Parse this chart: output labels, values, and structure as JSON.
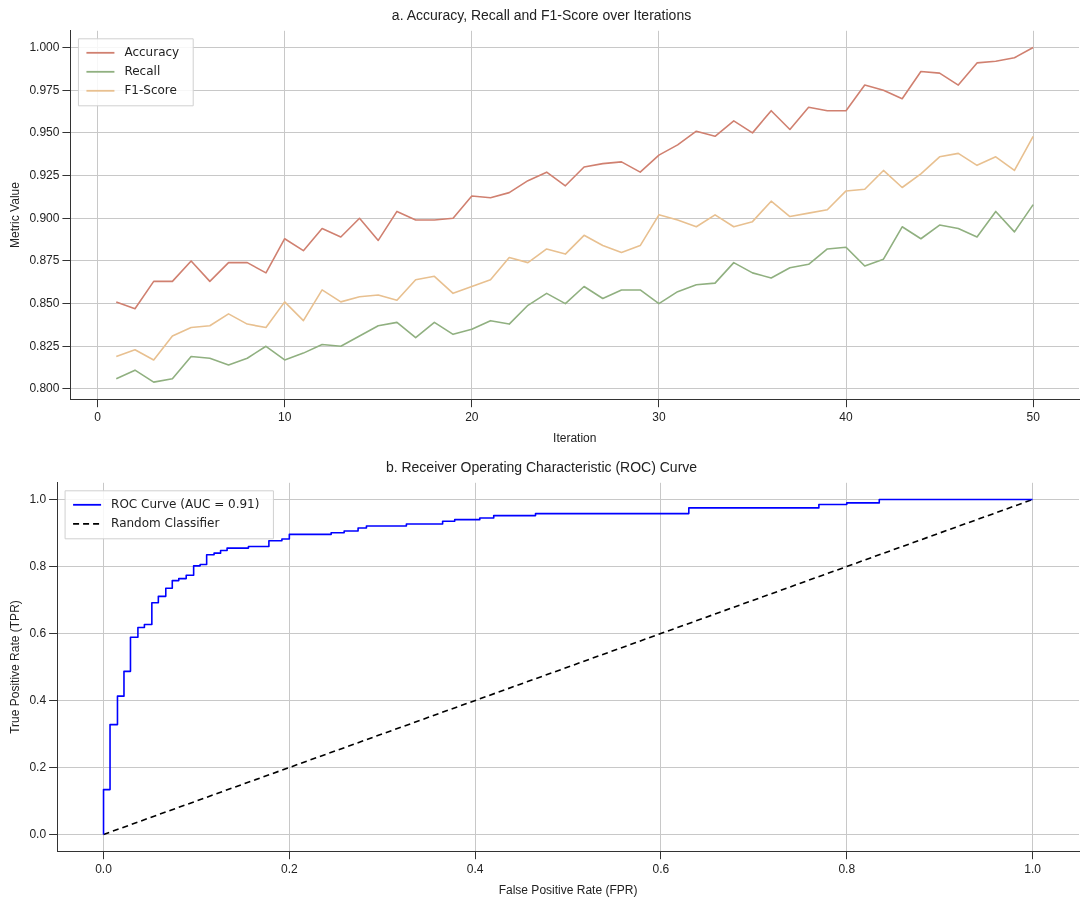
{
  "chart_data": [
    {
      "type": "line",
      "title": "a. Accuracy, Recall and F1-Score over Iterations",
      "xlabel": "Iteration",
      "ylabel": "Metric Value",
      "x": [
        1,
        2,
        3,
        4,
        5,
        6,
        7,
        8,
        9,
        10,
        11,
        12,
        13,
        14,
        15,
        16,
        17,
        18,
        19,
        20,
        21,
        22,
        23,
        24,
        25,
        26,
        27,
        28,
        29,
        30,
        31,
        32,
        33,
        34,
        35,
        36,
        37,
        38,
        39,
        40,
        41,
        42,
        43,
        44,
        45,
        46,
        47,
        48,
        49,
        50
      ],
      "series": [
        {
          "name": "Accuracy",
          "color": "#d08070",
          "values": [
            0.851,
            0.847,
            0.863,
            0.863,
            0.875,
            0.863,
            0.874,
            0.874,
            0.868,
            0.888,
            0.881,
            0.894,
            0.889,
            0.9,
            0.887,
            0.904,
            0.899,
            0.899,
            0.9,
            0.913,
            0.912,
            0.915,
            0.922,
            0.927,
            0.919,
            0.93,
            0.932,
            0.933,
            0.927,
            0.937,
            0.943,
            0.951,
            0.948,
            0.957,
            0.95,
            0.963,
            0.952,
            0.965,
            0.963,
            0.963,
            0.978,
            0.975,
            0.97,
            0.986,
            0.985,
            0.978,
            0.991,
            0.992,
            0.994,
            1.0
          ]
        },
        {
          "name": "Recall",
          "color": "#90b080",
          "values": [
            0.806,
            0.811,
            0.804,
            0.806,
            0.819,
            0.818,
            0.814,
            0.818,
            0.825,
            0.817,
            0.821,
            0.826,
            0.825,
            0.831,
            0.837,
            0.839,
            0.83,
            0.839,
            0.832,
            0.835,
            0.84,
            0.838,
            0.849,
            0.856,
            0.85,
            0.86,
            0.853,
            0.858,
            0.858,
            0.85,
            0.857,
            0.861,
            0.862,
            0.874,
            0.868,
            0.865,
            0.871,
            0.873,
            0.882,
            0.883,
            0.872,
            0.876,
            0.895,
            0.888,
            0.896,
            0.894,
            0.889,
            0.904,
            0.892,
            0.908
          ]
        },
        {
          "name": "F1-Score",
          "color": "#e8c090",
          "values": [
            0.819,
            0.823,
            0.817,
            0.831,
            0.836,
            0.837,
            0.844,
            0.838,
            0.836,
            0.851,
            0.84,
            0.858,
            0.851,
            0.854,
            0.855,
            0.852,
            0.864,
            0.866,
            0.856,
            0.86,
            0.864,
            0.877,
            0.874,
            0.882,
            0.879,
            0.89,
            0.884,
            0.88,
            0.884,
            0.902,
            0.899,
            0.895,
            0.902,
            0.895,
            0.898,
            0.91,
            0.901,
            0.903,
            0.905,
            0.916,
            0.917,
            0.928,
            0.918,
            0.926,
            0.936,
            0.938,
            0.931,
            0.936,
            0.928,
            0.948
          ]
        }
      ],
      "xlim": [
        -1.45,
        52.45
      ],
      "xticks": [
        0,
        10,
        20,
        30,
        40,
        50
      ],
      "ylim": [
        0.794,
        1.0098
      ],
      "yticks": [
        {
          "value": 0.8,
          "label": "0.800"
        },
        {
          "value": 0.825,
          "label": "0.825"
        },
        {
          "value": 0.85,
          "label": "0.850"
        },
        {
          "value": 0.875,
          "label": "0.875"
        },
        {
          "value": 0.9,
          "label": "0.900"
        },
        {
          "value": 0.925,
          "label": "0.925"
        },
        {
          "value": 0.95,
          "label": "0.950"
        },
        {
          "value": 0.975,
          "label": "0.975"
        },
        {
          "value": 1.0,
          "label": "1.000"
        }
      ],
      "grid": true,
      "legend": "top left",
      "marker": "none",
      "line_style": "solid"
    },
    {
      "type": "step",
      "title": "b. Receiver Operating Characteristic (ROC) Curve",
      "xlabel": "False Positive Rate (FPR)",
      "ylabel": "True Positive Rate (TPR)",
      "series": [
        {
          "name": "ROC Curve (AUC = 0.91)",
          "color": "#0000ff",
          "x": [
            0,
            0,
            0.007,
            0.015,
            0.022,
            0.029,
            0.037,
            0.044,
            0.052,
            0.059,
            0.067,
            0.074,
            0.081,
            0.089,
            0.097,
            0.104,
            0.111,
            0.119,
            0.126,
            0.133,
            0.156,
            0.178,
            0.192,
            0.2,
            0.245,
            0.259,
            0.274,
            0.283,
            0.326,
            0.365,
            0.378,
            0.405,
            0.42,
            0.465,
            0.63,
            0.77,
            0.8,
            0.835,
            1.0
          ],
          "values": [
            0,
            0.134,
            0.328,
            0.413,
            0.487,
            0.589,
            0.618,
            0.627,
            0.692,
            0.711,
            0.735,
            0.758,
            0.764,
            0.774,
            0.802,
            0.806,
            0.835,
            0.84,
            0.848,
            0.855,
            0.86,
            0.877,
            0.882,
            0.896,
            0.901,
            0.906,
            0.915,
            0.921,
            0.927,
            0.935,
            0.94,
            0.945,
            0.952,
            0.958,
            0.975,
            0.985,
            0.99,
            1.0,
            1.0
          ]
        },
        {
          "name": "Random Classifier",
          "type": "line",
          "color": "#000000",
          "line_style": "dashed",
          "x": [
            0,
            1
          ],
          "values": [
            0,
            1
          ]
        }
      ],
      "xlim": [
        -0.05,
        1.05
      ],
      "xticks": [
        {
          "value": 0,
          "label": "0.0"
        },
        {
          "value": 0.2,
          "label": "0.2"
        },
        {
          "value": 0.4,
          "label": "0.4"
        },
        {
          "value": 0.6,
          "label": "0.6"
        },
        {
          "value": 0.8,
          "label": "0.8"
        },
        {
          "value": 1,
          "label": "1.0"
        }
      ],
      "ylim": [
        -0.05,
        1.05
      ],
      "yticks": [
        {
          "value": 0,
          "label": "0.0"
        },
        {
          "value": 0.2,
          "label": "0.2"
        },
        {
          "value": 0.4,
          "label": "0.4"
        },
        {
          "value": 0.6,
          "label": "0.6"
        },
        {
          "value": 0.8,
          "label": "0.8"
        },
        {
          "value": 1,
          "label": "1.0"
        }
      ],
      "grid": true,
      "legend": "top left",
      "marker": "none",
      "line_style": "solid"
    }
  ]
}
